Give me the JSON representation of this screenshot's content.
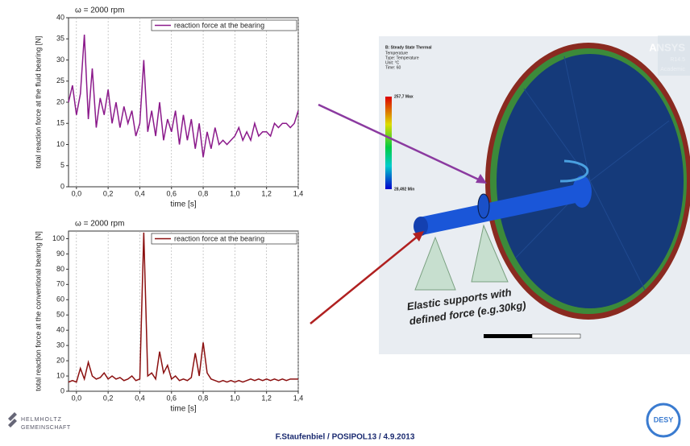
{
  "chart_data": [
    {
      "type": "line",
      "title": "ω = 2000 rpm",
      "x_label": "time [s]",
      "y_label": "total reaction force at the fluid bearing [N]",
      "x": [
        -0.05,
        -0.025,
        0,
        0.025,
        0.05,
        0.075,
        0.1,
        0.125,
        0.15,
        0.175,
        0.2,
        0.225,
        0.25,
        0.275,
        0.3,
        0.325,
        0.35,
        0.375,
        0.4,
        0.425,
        0.45,
        0.475,
        0.5,
        0.525,
        0.55,
        0.575,
        0.6,
        0.625,
        0.65,
        0.675,
        0.7,
        0.725,
        0.75,
        0.775,
        0.8,
        0.825,
        0.85,
        0.875,
        0.9,
        0.925,
        0.95,
        0.975,
        1.0,
        1.025,
        1.05,
        1.075,
        1.1,
        1.125,
        1.15,
        1.175,
        1.2,
        1.225,
        1.25,
        1.275,
        1.3,
        1.325,
        1.35,
        1.375,
        1.4
      ],
      "series": [
        {
          "name": "reaction force at the bearing",
          "color": "#8b1a8b",
          "values": [
            20,
            24,
            17,
            22,
            36,
            16,
            28,
            14,
            21,
            17,
            23,
            15,
            20,
            14,
            19,
            15,
            18,
            12,
            15,
            30,
            13,
            18,
            12,
            20,
            11,
            16,
            13,
            18,
            10,
            17,
            11,
            16,
            9,
            15,
            7,
            13,
            9,
            14,
            10,
            11,
            10,
            11,
            12,
            14,
            11,
            13,
            11,
            15,
            12,
            13,
            13,
            12,
            15,
            14,
            15,
            15,
            14,
            15,
            18
          ]
        }
      ],
      "xlim": [
        -0.05,
        1.4
      ],
      "xticks": [
        {
          "value": 0,
          "label": "0,0"
        },
        {
          "value": 0.2,
          "label": "0,2"
        },
        {
          "value": 0.4,
          "label": "0,4"
        },
        {
          "value": 0.6,
          "label": "0,6"
        },
        {
          "value": 0.8,
          "label": "0,8"
        },
        {
          "value": 1.0,
          "label": "1,0"
        },
        {
          "value": 1.2,
          "label": "1,2"
        },
        {
          "value": 1.4,
          "label": "1,4"
        }
      ],
      "ylim": [
        0,
        40
      ],
      "yticks": [
        0,
        5,
        10,
        15,
        20,
        25,
        30,
        35,
        40
      ],
      "grid": true,
      "legend": "top-right"
    },
    {
      "type": "line",
      "title": "ω = 2000 rpm",
      "x_label": "time [s]",
      "y_label": "total reaction force at the conventional bearing [N]",
      "x": [
        -0.05,
        -0.025,
        0,
        0.025,
        0.05,
        0.075,
        0.1,
        0.125,
        0.15,
        0.175,
        0.2,
        0.225,
        0.25,
        0.275,
        0.3,
        0.325,
        0.35,
        0.375,
        0.4,
        0.425,
        0.45,
        0.475,
        0.5,
        0.525,
        0.55,
        0.575,
        0.6,
        0.625,
        0.65,
        0.675,
        0.7,
        0.725,
        0.75,
        0.775,
        0.8,
        0.825,
        0.85,
        0.875,
        0.9,
        0.925,
        0.95,
        0.975,
        1.0,
        1.025,
        1.05,
        1.075,
        1.1,
        1.125,
        1.15,
        1.175,
        1.2,
        1.225,
        1.25,
        1.275,
        1.3,
        1.325,
        1.35,
        1.375,
        1.4
      ],
      "series": [
        {
          "name": "reaction force at the bearing",
          "color": "#8b1010",
          "values": [
            6,
            7,
            6,
            15,
            8,
            19,
            10,
            8,
            9,
            12,
            8,
            10,
            8,
            9,
            7,
            8,
            10,
            7,
            8,
            104,
            10,
            12,
            8,
            26,
            12,
            17,
            8,
            10,
            7,
            8,
            7,
            9,
            25,
            10,
            32,
            12,
            8,
            7,
            6,
            7,
            6,
            7,
            6,
            7,
            6,
            7,
            8,
            7,
            8,
            7,
            8,
            7,
            8,
            7,
            8,
            7,
            8,
            8,
            8
          ]
        }
      ],
      "xlim": [
        -0.05,
        1.4
      ],
      "xticks": [
        {
          "value": 0,
          "label": "0,0"
        },
        {
          "value": 0.2,
          "label": "0,2"
        },
        {
          "value": 0.4,
          "label": "0,4"
        },
        {
          "value": 0.6,
          "label": "0,6"
        },
        {
          "value": 0.8,
          "label": "0,8"
        },
        {
          "value": 1.0,
          "label": "1,0"
        },
        {
          "value": 1.2,
          "label": "1,2"
        },
        {
          "value": 1.4,
          "label": "1,4"
        }
      ],
      "ylim": [
        0,
        105
      ],
      "yticks": [
        0,
        10,
        20,
        30,
        40,
        50,
        60,
        70,
        80,
        90,
        100
      ],
      "grid": true,
      "legend": "top-right"
    }
  ],
  "simulation": {
    "brand": "ANSYS",
    "version": "R14.5",
    "license": "Academic",
    "header": [
      "B: Steady State Thermal",
      "Temperature",
      "Type: Temperature",
      "Unit: °C",
      "Time: 60"
    ],
    "max": "257,7 Max",
    "min": "28,492 Min",
    "annotation": [
      "Elastic supports with",
      "defined force (e.g.30kg)"
    ]
  },
  "footer": {
    "citation": "F.Staufenbiel / POSIPOL13 / 4.9.2013",
    "org": [
      "HELMHOLTZ",
      "GEMEINSCHAFT"
    ],
    "logo": "DESY"
  }
}
